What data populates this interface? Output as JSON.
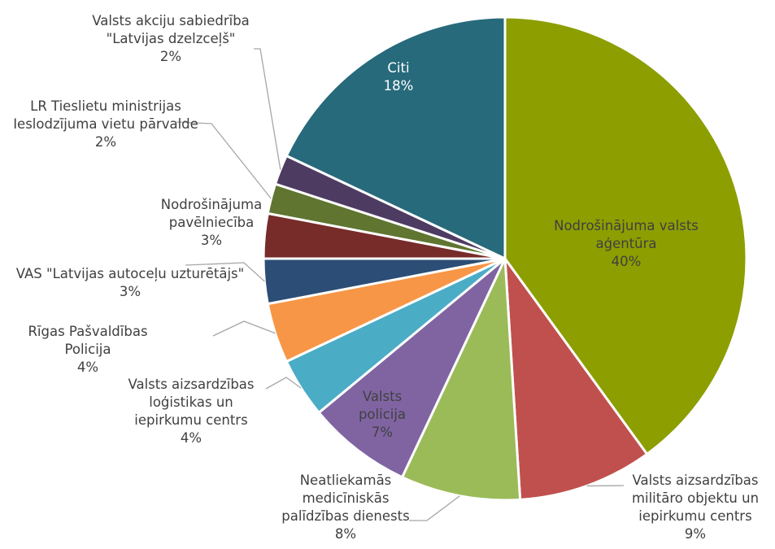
{
  "chart_data": {
    "type": "pie",
    "categories": [
      "Nodrošinājuma valsts aģentūra",
      "Valsts aizsardzības militāro objektu un iepirkumu centrs",
      "Neatliekamās medicīniskās palīdzības dienests",
      "Valsts policija",
      "Valsts aizsardzības loģistikas un iepirkumu centrs",
      "Rīgas Pašvaldības Policija",
      "VAS \"Latvijas autoceļu uzturētājs\"",
      "Nodrošinājuma pavēlniecība",
      "LR Tieslietu ministrijas Ieslodzījuma vietu pārvalde",
      "Valsts akciju sabiedrība \"Latvijas dzelzceļš\"",
      "Citi"
    ],
    "values": [
      40,
      9,
      8,
      7,
      4,
      4,
      3,
      3,
      2,
      2,
      18
    ],
    "value_labels": [
      "40%",
      "9%",
      "8%",
      "7%",
      "4%",
      "4%",
      "3%",
      "3%",
      "2%",
      "2%",
      "18%"
    ],
    "colors": [
      "#8c9e00",
      "#c0504d",
      "#9bbb59",
      "#8064a2",
      "#4bacc6",
      "#f79646",
      "#2c4d75",
      "#772c2a",
      "#5f7530",
      "#4d3b62",
      "#276a7c"
    ]
  }
}
